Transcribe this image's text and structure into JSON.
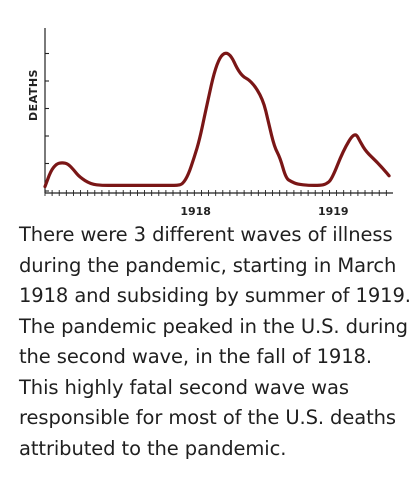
{
  "chart_data": {
    "type": "line",
    "title": "",
    "xlabel": "",
    "ylabel": "DEATHS",
    "x_tick_labels": [
      "1918",
      "1919"
    ],
    "x_tick_positions_months": [
      12,
      24
    ],
    "x": [
      0,
      0.5,
      1,
      1.5,
      2,
      2.5,
      3,
      4,
      5,
      6,
      7,
      8,
      9,
      10,
      10.5,
      11,
      11.5,
      12,
      12.5,
      13,
      13.5,
      14,
      15,
      16,
      17,
      18,
      19,
      19.5,
      20,
      20.5,
      21,
      21.5,
      22,
      23,
      24,
      24.5,
      25,
      26,
      27,
      27.5,
      28,
      29,
      30
    ],
    "y": [
      0.2,
      1.5,
      2.1,
      2.2,
      2.1,
      1.6,
      1.0,
      0.4,
      0.3,
      0.3,
      0.3,
      0.3,
      0.3,
      0.3,
      0.3,
      0.3,
      0.3,
      0.4,
      1.2,
      2.6,
      4.2,
      6.5,
      10.8,
      11.6,
      9.5,
      9.0,
      7.5,
      5.5,
      3.5,
      2.6,
      0.9,
      0.6,
      0.4,
      0.3,
      0.3,
      0.4,
      0.8,
      3.2,
      4.8,
      3.9,
      3.1,
      2.2,
      1.1
    ],
    "series_color": "#7a1616",
    "grid": false,
    "legend": "none"
  },
  "caption": "There were 3 different waves of illness during the pandemic, starting in March 1918 and subsiding by summer of 1919. The pandemic peaked in the U.S. during the second wave, in the fall of 1918. This highly fatal second wave was responsible for most of the U.S. deaths attributed to the pandemic."
}
